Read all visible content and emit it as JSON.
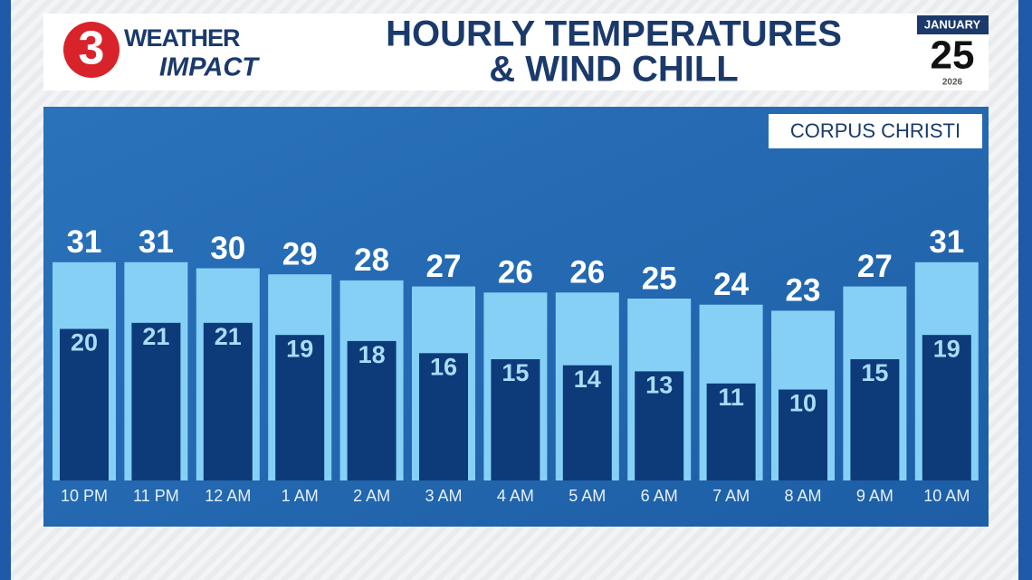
{
  "logo": {
    "number": "3",
    "line1": "WEATHER",
    "line2": "IMPACT"
  },
  "date": {
    "month": "JANUARY",
    "day": "25",
    "year": "2026"
  },
  "chart_data": {
    "type": "bar",
    "title": [
      "HOURLY TEMPERATURES",
      "& WIND CHILL"
    ],
    "location": "CORPUS CHRISTI",
    "categories": [
      "10 PM",
      "11 PM",
      "12 AM",
      "1 AM",
      "2 AM",
      "3 AM",
      "4 AM",
      "5 AM",
      "6 AM",
      "7 AM",
      "8 AM",
      "9 AM",
      "10 AM"
    ],
    "series": [
      {
        "color": "#86d0f6",
        "values": [
          31,
          31,
          30,
          29,
          28,
          27,
          26,
          26,
          25,
          24,
          23,
          27,
          31
        ]
      },
      {
        "color": "#0d3b7a",
        "values": [
          20,
          21,
          21,
          19,
          18,
          16,
          15,
          14,
          13,
          11,
          10,
          15,
          19
        ]
      }
    ],
    "ylim": [
      -5,
      35
    ]
  }
}
